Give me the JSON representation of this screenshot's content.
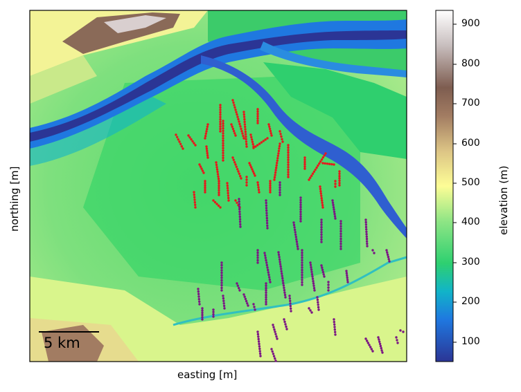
{
  "map": {
    "xlabel": "easting [m]",
    "ylabel": "northing [m]",
    "scalebar_label": "5 km"
  },
  "colorbar": {
    "label": "elevation (m)",
    "ticks": [
      "900",
      "800",
      "700",
      "600",
      "500",
      "400",
      "300",
      "200",
      "100"
    ],
    "colors": {
      "deep_blue": "#2b3595",
      "blue": "#1f78e0",
      "cyan": "#11b4c8",
      "green": "#35d46a",
      "light_green": "#8fe585",
      "yellow": "#fdfd96",
      "tan": "#c9a56f",
      "brown": "#7e5d50",
      "white": "#ffffff"
    }
  },
  "markers": {
    "red": "#e41a1c",
    "purple": "#7b1783"
  }
}
